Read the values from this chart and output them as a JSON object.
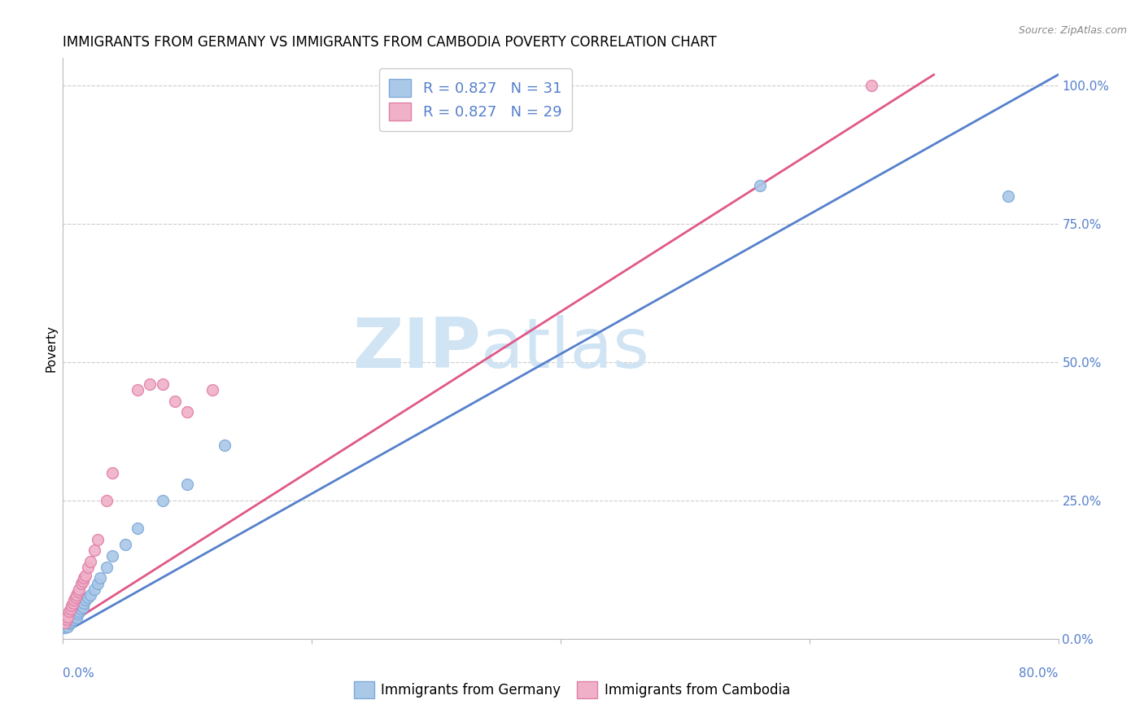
{
  "title": "IMMIGRANTS FROM GERMANY VS IMMIGRANTS FROM CAMBODIA POVERTY CORRELATION CHART",
  "source": "Source: ZipAtlas.com",
  "xmin": 0.0,
  "xmax": 0.8,
  "ymin": 0.0,
  "ymax": 1.05,
  "germany_scatter_x": [
    0.002,
    0.003,
    0.004,
    0.005,
    0.006,
    0.007,
    0.008,
    0.009,
    0.01,
    0.011,
    0.012,
    0.013,
    0.014,
    0.015,
    0.016,
    0.017,
    0.018,
    0.02,
    0.022,
    0.025,
    0.028,
    0.03,
    0.035,
    0.04,
    0.05,
    0.06,
    0.08,
    0.1,
    0.13,
    0.56,
    0.76
  ],
  "germany_scatter_y": [
    0.02,
    0.025,
    0.022,
    0.028,
    0.03,
    0.032,
    0.035,
    0.04,
    0.042,
    0.038,
    0.045,
    0.05,
    0.055,
    0.06,
    0.058,
    0.065,
    0.07,
    0.075,
    0.08,
    0.09,
    0.1,
    0.11,
    0.13,
    0.15,
    0.17,
    0.2,
    0.25,
    0.28,
    0.35,
    0.82,
    0.8
  ],
  "cambodia_scatter_x": [
    0.002,
    0.003,
    0.004,
    0.005,
    0.006,
    0.007,
    0.008,
    0.009,
    0.01,
    0.011,
    0.012,
    0.013,
    0.015,
    0.016,
    0.017,
    0.018,
    0.02,
    0.022,
    0.025,
    0.028,
    0.035,
    0.04,
    0.06,
    0.07,
    0.08,
    0.09,
    0.1,
    0.12,
    0.65
  ],
  "cambodia_scatter_y": [
    0.03,
    0.035,
    0.04,
    0.05,
    0.055,
    0.06,
    0.065,
    0.07,
    0.075,
    0.08,
    0.085,
    0.09,
    0.1,
    0.105,
    0.11,
    0.115,
    0.13,
    0.14,
    0.16,
    0.18,
    0.25,
    0.3,
    0.45,
    0.46,
    0.46,
    0.43,
    0.41,
    0.45,
    1.0
  ],
  "germany_line_x": [
    0.0,
    0.8
  ],
  "germany_line_y": [
    0.01,
    1.02
  ],
  "cambodia_line_x": [
    0.0,
    0.7
  ],
  "cambodia_line_y": [
    0.02,
    1.02
  ],
  "scatter_size": 100,
  "germany_scatter_color": "#aac8e8",
  "germany_scatter_edge": "#80aad8",
  "cambodia_scatter_color": "#f0b0c8",
  "cambodia_scatter_edge": "#e080a8",
  "germany_line_color": "#5580cc",
  "cambodia_line_color": "#e05888",
  "grid_color": "#cccccc",
  "background_color": "#ffffff",
  "title_fontsize": 12,
  "label_fontsize": 11,
  "tick_fontsize": 11,
  "legend_fontsize": 13,
  "watermark_zip": "ZIP",
  "watermark_atlas": "atlas",
  "watermark_color": "#d0e4f4",
  "watermark_fontsize": 62,
  "right_tick_color": "#5580cc",
  "bottom_tick_color": "#5580cc",
  "ytick_vals": [
    0.0,
    0.25,
    0.5,
    0.75,
    1.0
  ],
  "ytick_labels": [
    "0.0%",
    "25.0%",
    "50.0%",
    "75.0%",
    "100.0%"
  ],
  "xtick_vals": [
    0.0,
    0.2,
    0.4,
    0.6,
    0.8
  ],
  "xtick_labels_bottom_left": "0.0%",
  "xtick_labels_bottom_right": "80.0%",
  "legend1_label": "R = 0.827   N = 31",
  "legend2_label": "R = 0.827   N = 29",
  "bottom_legend1": "Immigrants from Germany",
  "bottom_legend2": "Immigrants from Cambodia"
}
